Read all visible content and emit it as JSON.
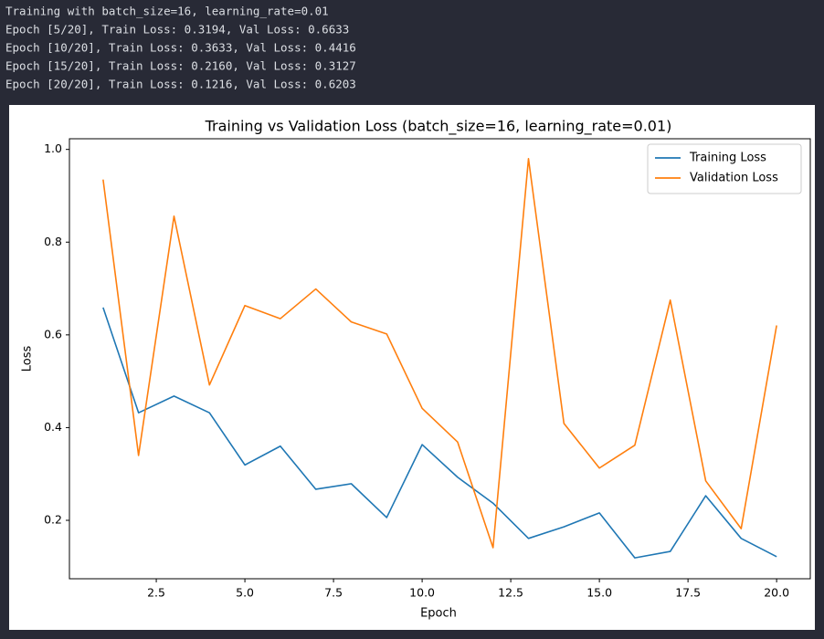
{
  "console": {
    "lines": [
      "Training with batch_size=16, learning_rate=0.01",
      "Epoch [5/20], Train Loss: 0.3194, Val Loss: 0.6633",
      "Epoch [10/20], Train Loss: 0.3633, Val Loss: 0.4416",
      "Epoch [15/20], Train Loss: 0.2160, Val Loss: 0.3127",
      "Epoch [20/20], Train Loss: 0.1216, Val Loss: 0.6203"
    ]
  },
  "chart_data": {
    "type": "line",
    "title": "Training vs Validation Loss (batch_size=16, learning_rate=0.01)",
    "x_label": "Epoch",
    "y_label": "Loss",
    "x": [
      1,
      2,
      3,
      4,
      5,
      6,
      7,
      8,
      9,
      10,
      11,
      12,
      13,
      14,
      15,
      16,
      17,
      18,
      19,
      20
    ],
    "series": [
      {
        "name": "Training Loss",
        "color": "#1f77b4",
        "values": [
          0.659,
          0.432,
          0.468,
          0.432,
          0.3194,
          0.36,
          0.267,
          0.279,
          0.206,
          0.3633,
          0.293,
          0.237,
          0.161,
          0.186,
          0.216,
          0.119,
          0.133,
          0.253,
          0.161,
          0.1216
        ]
      },
      {
        "name": "Validation Loss",
        "color": "#ff7f0e",
        "values": [
          0.935,
          0.34,
          0.856,
          0.492,
          0.6633,
          0.635,
          0.699,
          0.628,
          0.602,
          0.4416,
          0.369,
          0.141,
          0.98,
          0.409,
          0.3127,
          0.362,
          0.675,
          0.285,
          0.182,
          0.6203
        ]
      }
    ],
    "xlim": [
      0.05,
      20.95
    ],
    "ylim": [
      0.074,
      1.023
    ],
    "xticks": [
      2.5,
      {
        "value": 5,
        "label": "5.0"
      },
      7.5,
      {
        "value": 10,
        "label": "10.0"
      },
      12.5,
      {
        "value": 15,
        "label": "15.0"
      },
      17.5,
      {
        "value": 20,
        "label": "20.0"
      }
    ],
    "yticks": [
      0.2,
      0.4,
      0.6,
      0.8,
      {
        "value": 1,
        "label": "1.0"
      }
    ],
    "grid": false,
    "legend": "upper right"
  }
}
